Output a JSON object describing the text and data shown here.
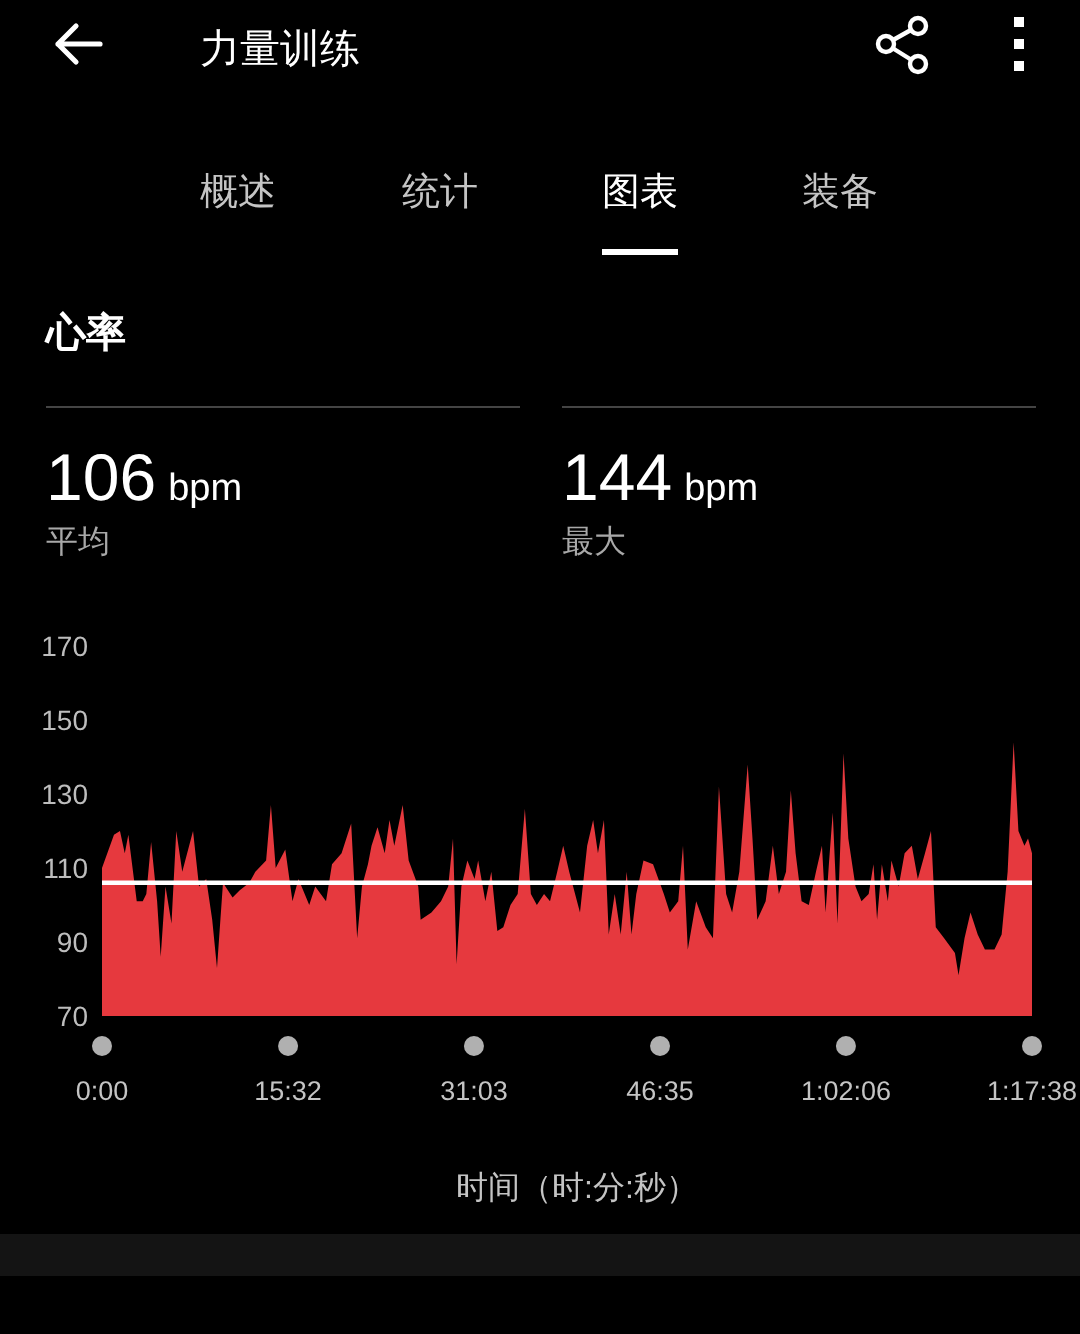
{
  "chart_data": {
    "type": "area",
    "title": "心率",
    "xlabel": "时间（时:分:秒）",
    "annotations": [
      "力量训练",
      "概述",
      "统计",
      "图表",
      "装备",
      "106",
      "bpm",
      "平均",
      "144",
      "bpm",
      "最大"
    ],
    "x": [
      0,
      1.0,
      1.5,
      1.9,
      2.2,
      2.9,
      3.4,
      3.7,
      4.1,
      4.6,
      4.9,
      5.3,
      5.8,
      6.2,
      6.7,
      7.6,
      8.1,
      8.7,
      9.2,
      9.6,
      10.1,
      10.9,
      11.5,
      12.3,
      12.8,
      13.7,
      14.1,
      14.5,
      15.3,
      15.9,
      16.4,
      17.3,
      17.8,
      18.7,
      19.2,
      20.0,
      20.8,
      21.3,
      21.7,
      22.2,
      22.5,
      23.0,
      23.6,
      24.0,
      24.4,
      25.1,
      25.6,
      26.4,
      26.6,
      27.5,
      28.3,
      28.9,
      29.3,
      29.6,
      30.0,
      30.5,
      31.1,
      31.4,
      32.0,
      32.5,
      33.0,
      33.5,
      34.1,
      34.7,
      35.3,
      35.8,
      36.3,
      36.9,
      37.4,
      38.0,
      38.5,
      39.0,
      39.9,
      40.5,
      41.0,
      41.4,
      41.9,
      42.3,
      42.8,
      43.3,
      43.8,
      44.2,
      44.6,
      45.2,
      46.0,
      46.9,
      47.4,
      48.1,
      48.5,
      48.9,
      49.6,
      50.4,
      51.0,
      51.5,
      52.1,
      52.6,
      53.2,
      53.9,
      54.3,
      54.7,
      55.4,
      56.0,
      56.5,
      57.1,
      57.5,
      57.9,
      58.4,
      59.0,
      59.6,
      60.1,
      60.4,
      60.7,
      61.0,
      61.4,
      61.9,
      62.3,
      62.9,
      63.4,
      64.0,
      64.4,
      64.7,
      65.1,
      65.6,
      65.9,
      66.5,
      67.0,
      67.6,
      68.1,
      68.7,
      69.2,
      69.6,
      70.3,
      71.2,
      71.5,
      72.0,
      72.5,
      73.1,
      73.7,
      74.5,
      75.1,
      75.6,
      76.1,
      76.5,
      77.0,
      77.3,
      77.633
    ],
    "series": [
      {
        "color": "#e6393e",
        "values": [
          110,
          119,
          120,
          114,
          119,
          101,
          101,
          103,
          117,
          101,
          86,
          105,
          95,
          120,
          109,
          120,
          105,
          107,
          96,
          83,
          106,
          102,
          104,
          106,
          109,
          112,
          127,
          110,
          115,
          101,
          107,
          100,
          105,
          101,
          111,
          114,
          122,
          91,
          105,
          111,
          116,
          121,
          114,
          123,
          116,
          127,
          112,
          105,
          96,
          98,
          101,
          105,
          118,
          84,
          105,
          112,
          107,
          112,
          101,
          109,
          93,
          94,
          100,
          103,
          126,
          103,
          100,
          103,
          101,
          109,
          116,
          109,
          98,
          116,
          123,
          114,
          123,
          92,
          103,
          92,
          109,
          92,
          103,
          112,
          111,
          103,
          98,
          101,
          116,
          88,
          101,
          94,
          91,
          132,
          103,
          98,
          109,
          138,
          118,
          96,
          101,
          116,
          103,
          109,
          131,
          114,
          101,
          100,
          109,
          116,
          98,
          112,
          125,
          95,
          141,
          118,
          105,
          101,
          103,
          111,
          96,
          111,
          101,
          112,
          105,
          114,
          116,
          107,
          114,
          120,
          94,
          91,
          87,
          81,
          91,
          98,
          92,
          88,
          88,
          92,
          109,
          144,
          120,
          116,
          118,
          114
        ]
      }
    ],
    "xlim": [
      0,
      77.633
    ],
    "ylim": [
      70,
      170
    ],
    "xticks": [
      {
        "value": 0,
        "label": "0:00"
      },
      {
        "value": 15.533,
        "label": "15:32"
      },
      {
        "value": 31.05,
        "label": "31:03"
      },
      {
        "value": 46.583,
        "label": "46:35"
      },
      {
        "value": 62.1,
        "label": "1:02:06"
      },
      {
        "value": 77.633,
        "label": "1:17:38"
      }
    ],
    "yticks": [
      70,
      90,
      110,
      130,
      150,
      170
    ],
    "ref_lines": [
      {
        "axis": "y",
        "value": 106,
        "color": "#ffffff"
      }
    ]
  }
}
